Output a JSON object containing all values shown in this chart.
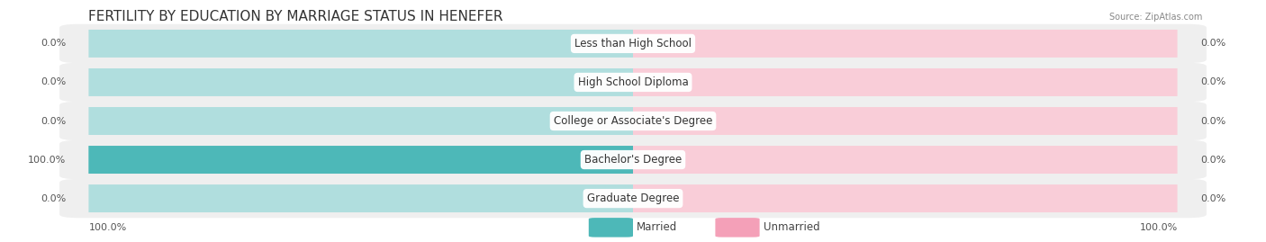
{
  "title": "FERTILITY BY EDUCATION BY MARRIAGE STATUS IN HENEFER",
  "source": "Source: ZipAtlas.com",
  "categories": [
    "Less than High School",
    "High School Diploma",
    "College or Associate's Degree",
    "Bachelor's Degree",
    "Graduate Degree"
  ],
  "married_values": [
    0.0,
    0.0,
    0.0,
    100.0,
    0.0
  ],
  "unmarried_values": [
    0.0,
    0.0,
    0.0,
    0.0,
    0.0
  ],
  "married_color": "#4db8b8",
  "unmarried_color": "#f4a0b8",
  "bar_bg_left_color": "#b0dede",
  "bar_bg_right_color": "#f9cdd8",
  "row_bg_color": "#efefef",
  "max_value": 100.0,
  "axis_left_label": "100.0%",
  "axis_right_label": "100.0%",
  "background_color": "#ffffff",
  "title_fontsize": 11,
  "label_fontsize": 8,
  "source_fontsize": 7
}
